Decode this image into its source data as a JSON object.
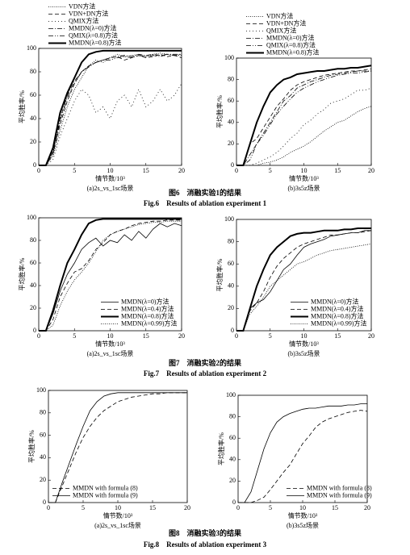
{
  "chart_data": [
    {
      "type": "line",
      "subtitle": "(a)2s_vs_1sc场景",
      "xlabel": "情节数/10³",
      "ylabel": "平均胜率/%",
      "legend": "above",
      "xlim": [
        0,
        20
      ],
      "xticks": [
        0,
        5,
        10,
        15,
        20
      ],
      "ylim": [
        0,
        100
      ],
      "yticks": [
        0,
        20,
        40,
        60,
        80,
        100
      ],
      "x": [
        0,
        1,
        2,
        3,
        4,
        5,
        6,
        7,
        8,
        9,
        10,
        11,
        12,
        13,
        14,
        15,
        16,
        17,
        18,
        19,
        20
      ],
      "series": [
        {
          "name": "VDN方法",
          "color": "#000",
          "dash": "1,1.5",
          "width": 0.8,
          "values": [
            0,
            0,
            8,
            30,
            50,
            65,
            75,
            85,
            90,
            88,
            92,
            95,
            93,
            94,
            95,
            93,
            95,
            96,
            95,
            94,
            95
          ]
        },
        {
          "name": "VDN+DN方法",
          "color": "#000",
          "dash": "5,3",
          "width": 0.8,
          "values": [
            0,
            0,
            10,
            35,
            55,
            70,
            80,
            85,
            88,
            90,
            92,
            93,
            90,
            92,
            94,
            92,
            93,
            95,
            93,
            94,
            92
          ]
        },
        {
          "name": "QMIX方法",
          "color": "#000",
          "dash": "1,3",
          "width": 0.8,
          "values": [
            0,
            0,
            5,
            25,
            40,
            55,
            65,
            60,
            45,
            50,
            40,
            55,
            60,
            50,
            65,
            50,
            55,
            65,
            55,
            60,
            70
          ]
        },
        {
          "name": "MMDN(λ=0)方法",
          "color": "#000",
          "dash": "6,2,1,2",
          "width": 0.8,
          "values": [
            0,
            0,
            12,
            40,
            60,
            72,
            80,
            85,
            88,
            90,
            92,
            93,
            94,
            93,
            95,
            94,
            95,
            94,
            95,
            95,
            95
          ]
        },
        {
          "name": "QMIX(λ=0.8)方法",
          "color": "#000",
          "dash": "6,2,1,2,1,2",
          "width": 0.8,
          "values": [
            0,
            0,
            10,
            38,
            58,
            70,
            80,
            84,
            88,
            90,
            90,
            92,
            93,
            92,
            94,
            93,
            94,
            93,
            95,
            94,
            94
          ]
        },
        {
          "name": "MMDN(λ=0.8)方法",
          "color": "#000",
          "dash": "none",
          "width": 2,
          "values": [
            0,
            0,
            15,
            45,
            62,
            75,
            88,
            95,
            97,
            98,
            98,
            98,
            98,
            98,
            98,
            98,
            98,
            98,
            98,
            98,
            98
          ]
        }
      ]
    },
    {
      "type": "line",
      "subtitle": "(b)3s5z场景",
      "xlabel": "情节数/10³",
      "ylabel": "平均胜率/%",
      "legend": "above",
      "xlim": [
        0,
        20
      ],
      "xticks": [
        0,
        5,
        10,
        15,
        20
      ],
      "ylim": [
        0,
        100
      ],
      "yticks": [
        0,
        20,
        40,
        60,
        80,
        100
      ],
      "x": [
        0,
        1,
        2,
        3,
        4,
        5,
        6,
        7,
        8,
        9,
        10,
        11,
        12,
        13,
        14,
        15,
        16,
        17,
        18,
        19,
        20
      ],
      "series": [
        {
          "name": "VDN方法",
          "color": "#000",
          "dash": "1,1.5",
          "width": 0.8,
          "values": [
            0,
            0,
            0,
            0,
            2,
            3,
            5,
            8,
            12,
            15,
            18,
            22,
            27,
            32,
            36,
            40,
            42,
            46,
            50,
            53,
            55
          ]
        },
        {
          "name": "VDN+DN方法",
          "color": "#000",
          "dash": "5,3",
          "width": 0.8,
          "values": [
            0,
            0,
            20,
            25,
            35,
            45,
            55,
            62,
            70,
            75,
            78,
            80,
            82,
            84,
            85,
            86,
            87,
            88,
            88,
            89,
            90
          ]
        },
        {
          "name": "QMIX方法",
          "color": "#000",
          "dash": "1,3",
          "width": 0.8,
          "values": [
            0,
            0,
            0,
            2,
            5,
            8,
            12,
            18,
            25,
            30,
            38,
            42,
            48,
            52,
            58,
            60,
            62,
            66,
            70,
            70,
            72
          ]
        },
        {
          "name": "MMDN(λ=0)方法",
          "color": "#000",
          "dash": "6,2,1,2",
          "width": 0.8,
          "values": [
            0,
            0,
            10,
            20,
            30,
            40,
            50,
            60,
            65,
            72,
            75,
            78,
            80,
            82,
            84,
            85,
            86,
            87,
            88,
            88,
            88
          ]
        },
        {
          "name": "QMIX(λ=0.8)方法",
          "color": "#000",
          "dash": "6,2,1,2,1,2",
          "width": 0.8,
          "values": [
            0,
            0,
            5,
            20,
            28,
            38,
            48,
            55,
            62,
            68,
            72,
            75,
            78,
            80,
            82,
            84,
            85,
            86,
            86,
            87,
            88
          ]
        },
        {
          "name": "MMDN(λ=0.8)方法",
          "color": "#000",
          "dash": "none",
          "width": 2,
          "values": [
            0,
            0,
            20,
            40,
            55,
            68,
            75,
            80,
            82,
            85,
            86,
            87,
            88,
            88,
            89,
            90,
            90,
            91,
            91,
            92,
            93
          ]
        }
      ]
    },
    {
      "type": "line",
      "subtitle": "(a)2s_vs_1sc场景",
      "xlabel": "情节数/10³",
      "ylabel": "平均胜率/%",
      "legend": "lower right",
      "xlim": [
        0,
        20
      ],
      "xticks": [
        0,
        5,
        10,
        15,
        20
      ],
      "ylim": [
        0,
        100
      ],
      "yticks": [
        0,
        20,
        40,
        60,
        80,
        100
      ],
      "x": [
        0,
        1,
        2,
        3,
        4,
        5,
        6,
        7,
        8,
        9,
        10,
        11,
        12,
        13,
        14,
        15,
        16,
        17,
        18,
        19,
        20
      ],
      "series": [
        {
          "name": "MMDN(λ=0)方法",
          "color": "#000",
          "dash": "none",
          "width": 0.8,
          "values": [
            0,
            0,
            15,
            35,
            50,
            60,
            72,
            78,
            82,
            75,
            80,
            78,
            85,
            80,
            88,
            82,
            90,
            95,
            92,
            95,
            93
          ]
        },
        {
          "name": "MMDN(λ=0.4)方法",
          "color": "#000",
          "dash": "5,3",
          "width": 0.8,
          "values": [
            0,
            0,
            10,
            30,
            42,
            52,
            55,
            62,
            72,
            78,
            85,
            88,
            90,
            93,
            95,
            96,
            97,
            97,
            98,
            98,
            98
          ]
        },
        {
          "name": "MMDN(λ=0.8)方法",
          "color": "#000",
          "dash": "none",
          "width": 2,
          "values": [
            0,
            0,
            18,
            40,
            60,
            72,
            85,
            95,
            98,
            99,
            99,
            99,
            99,
            99,
            99,
            99,
            99,
            99,
            99,
            99,
            99
          ]
        },
        {
          "name": "MMDN(λ=0.99)方法",
          "color": "#000",
          "dash": "1,1.5",
          "width": 0.8,
          "values": [
            0,
            0,
            5,
            22,
            35,
            45,
            52,
            60,
            70,
            80,
            85,
            88,
            90,
            92,
            94,
            95,
            96,
            96,
            97,
            97,
            97
          ]
        }
      ]
    },
    {
      "type": "line",
      "subtitle": "(b)3s5z场景",
      "xlabel": "情节数/10³",
      "ylabel": "平均胜率/%",
      "legend": "lower right",
      "xlim": [
        0,
        20
      ],
      "xticks": [
        0,
        5,
        10,
        15,
        20
      ],
      "ylim": [
        0,
        100
      ],
      "yticks": [
        0,
        20,
        40,
        60,
        80,
        100
      ],
      "x": [
        0,
        1,
        2,
        3,
        4,
        5,
        6,
        7,
        8,
        9,
        10,
        11,
        12,
        13,
        14,
        15,
        16,
        17,
        18,
        19,
        20
      ],
      "series": [
        {
          "name": "MMDN(λ=0)方法",
          "color": "#000",
          "dash": "none",
          "width": 0.8,
          "values": [
            0,
            0,
            20,
            25,
            28,
            35,
            45,
            55,
            60,
            68,
            75,
            78,
            80,
            82,
            85,
            86,
            87,
            88,
            88,
            90,
            90
          ]
        },
        {
          "name": "MMDN(λ=0.4)方法",
          "color": "#000",
          "dash": "5,3",
          "width": 0.8,
          "values": [
            0,
            0,
            18,
            25,
            35,
            48,
            58,
            65,
            70,
            75,
            78,
            80,
            82,
            84,
            86,
            86,
            87,
            88,
            88,
            89,
            90
          ]
        },
        {
          "name": "MMDN(λ=0.8)方法",
          "color": "#000",
          "dash": "none",
          "width": 2,
          "values": [
            0,
            0,
            20,
            40,
            55,
            68,
            75,
            80,
            85,
            87,
            88,
            88,
            89,
            90,
            90,
            90,
            91,
            91,
            92,
            92,
            92
          ]
        },
        {
          "name": "MMDN(λ=0.99)方法",
          "color": "#000",
          "dash": "1,1.5",
          "width": 0.8,
          "values": [
            0,
            0,
            15,
            22,
            30,
            40,
            45,
            50,
            55,
            60,
            62,
            65,
            68,
            70,
            72,
            73,
            74,
            75,
            76,
            77,
            78
          ]
        }
      ]
    },
    {
      "type": "line",
      "subtitle": "(a)2s_vs_1sc场景",
      "xlabel": "情节数/10³",
      "ylabel": "平均胜率/%",
      "legend": "lower left",
      "xlim": [
        0,
        20
      ],
      "xticks": [
        0,
        5,
        10,
        15,
        20
      ],
      "ylim": [
        0,
        100
      ],
      "yticks": [
        0,
        20,
        40,
        60,
        80,
        100
      ],
      "x": [
        0,
        1,
        2,
        3,
        4,
        5,
        6,
        7,
        8,
        9,
        10,
        11,
        12,
        13,
        14,
        15,
        16,
        17,
        18,
        19,
        20
      ],
      "series": [
        {
          "name": "MMDN with formula (8)",
          "color": "#000",
          "dash": "5,3",
          "width": 0.8,
          "values": [
            0,
            0,
            15,
            30,
            45,
            58,
            68,
            76,
            82,
            86,
            90,
            92,
            94,
            95,
            96,
            97,
            97,
            98,
            98,
            98,
            98
          ]
        },
        {
          "name": "MMDN with formula (9)",
          "color": "#000",
          "dash": "none",
          "width": 0.8,
          "values": [
            0,
            0,
            18,
            35,
            52,
            68,
            82,
            90,
            95,
            97,
            98,
            98,
            98,
            98,
            98,
            98,
            98,
            98,
            98,
            98,
            98
          ]
        }
      ]
    },
    {
      "type": "line",
      "subtitle": "(b)3s5z场景",
      "xlabel": "情节数/10³",
      "ylabel": "平均胜率/%",
      "legend": "lower right",
      "xlim": [
        0,
        20
      ],
      "xticks": [
        0,
        5,
        10,
        15,
        20
      ],
      "ylim": [
        0,
        100
      ],
      "yticks": [
        0,
        20,
        40,
        60,
        80,
        100
      ],
      "x": [
        0,
        1,
        2,
        3,
        4,
        5,
        6,
        7,
        8,
        9,
        10,
        11,
        12,
        13,
        14,
        15,
        16,
        17,
        18,
        19,
        20
      ],
      "series": [
        {
          "name": "MMDN with formula (8)",
          "color": "#000",
          "dash": "5,3",
          "width": 0.8,
          "values": [
            0,
            0,
            0,
            2,
            5,
            12,
            20,
            28,
            35,
            45,
            55,
            62,
            70,
            75,
            78,
            80,
            82,
            84,
            85,
            86,
            85
          ]
        },
        {
          "name": "MMDN with formula (9)",
          "color": "#000",
          "dash": "none",
          "width": 0.8,
          "values": [
            0,
            0,
            10,
            30,
            50,
            65,
            75,
            80,
            83,
            85,
            87,
            88,
            88,
            89,
            90,
            90,
            90,
            91,
            91,
            92,
            92
          ]
        }
      ]
    }
  ],
  "captions": [
    {
      "zh": "图6　消融实验1的结果",
      "en": "Fig.6　Results of ablation experiment 1"
    },
    {
      "zh": "图7　消融实验2的结果",
      "en": "Fig.7　Results of ablation experiment 2"
    },
    {
      "zh": "图8　消融实验3的结果",
      "en": "Fig.8　Results of ablation experiment 3"
    }
  ]
}
